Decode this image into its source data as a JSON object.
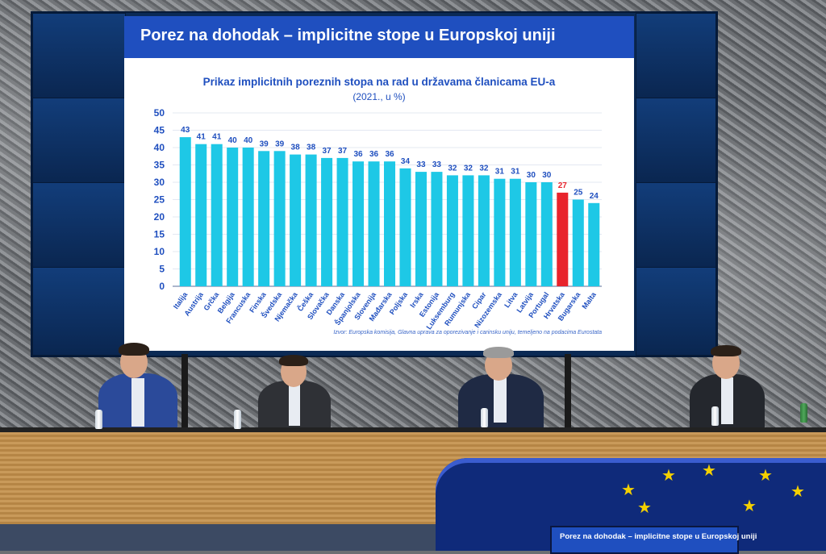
{
  "slide": {
    "title": "Porez na dohodak – implicitne stope u Europskoj uniji",
    "source": "Izvor: Europska komisija, Glavna uprava za oporezivanje i carinsku uniju, temeljeno na podacima Eurostata"
  },
  "podium_screen": {
    "title": "Porez na dohodak – implicitne stope u Europskoj uniji"
  },
  "colors": {
    "bar": "#1ec8e6",
    "highlight": "#e8242c",
    "label": "#1f4fbf",
    "highlight_label": "#e8242c",
    "header": "#1f4fbf",
    "eu_blue": "#0f2a7a",
    "eu_star": "#f4d000"
  },
  "chart_data": {
    "type": "bar",
    "title": "Prikaz implicitnih poreznih stopa na rad u državama članicama EU-a",
    "subtitle": "(2021., u %)",
    "xlabel": "",
    "ylabel": "",
    "ylim": [
      0,
      50
    ],
    "yticks": [
      0,
      5,
      10,
      15,
      20,
      25,
      30,
      35,
      40,
      45,
      50
    ],
    "grid": true,
    "highlight": "Hrvatska",
    "categories": [
      "Italija",
      "Austrija",
      "Grčka",
      "Belgija",
      "Francuska",
      "Finska",
      "Švedska",
      "Njemačka",
      "Češka",
      "Slovačka",
      "Danska",
      "Španjolska",
      "Slovenija",
      "Mađarska",
      "Poljska",
      "Irska",
      "Estonija",
      "Luksemburg",
      "Rumunjska",
      "Cipar",
      "Nizozemska",
      "Litva",
      "Latvija",
      "Portugal",
      "Hrvatska",
      "Bugarska",
      "Malta"
    ],
    "values": [
      43,
      41,
      41,
      40,
      40,
      39,
      39,
      38,
      38,
      37,
      37,
      36,
      36,
      36,
      34,
      33,
      33,
      32,
      32,
      32,
      31,
      31,
      30,
      30,
      27,
      25,
      24
    ],
    "data_labels": [
      "43",
      "41",
      "41",
      "40",
      "40",
      "39",
      "39",
      "38",
      "38",
      "37",
      "37",
      "36",
      "36",
      "36",
      "34",
      "33",
      "33",
      "32",
      "32",
      "32",
      "31",
      "31",
      "30",
      "30",
      "27",
      "25",
      "24"
    ]
  }
}
